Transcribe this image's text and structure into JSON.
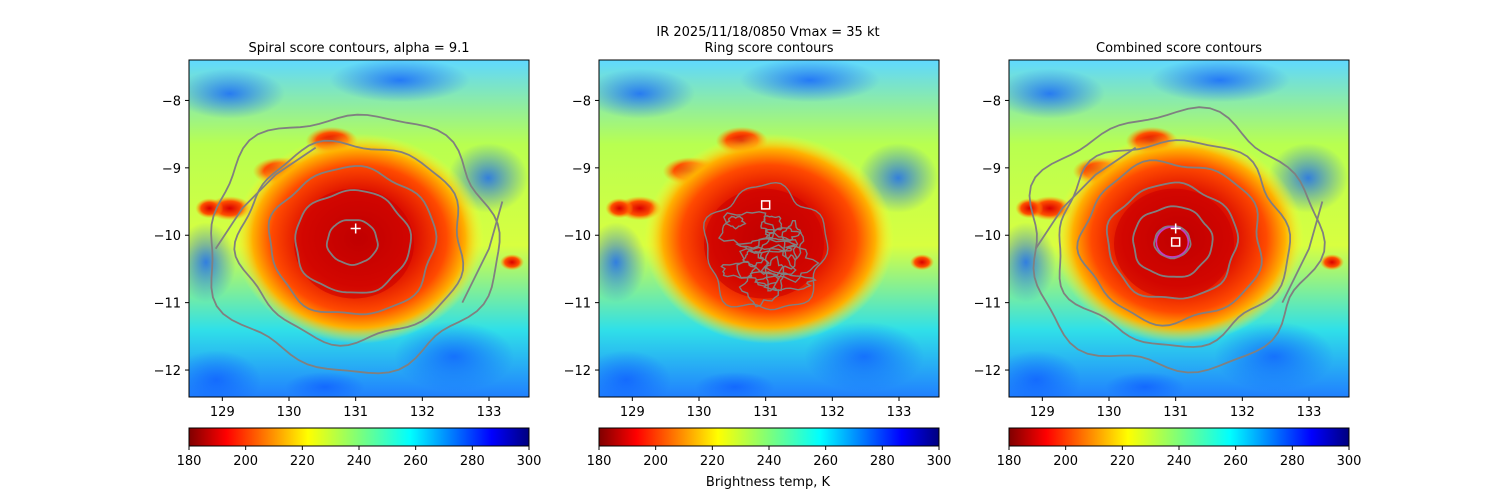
{
  "figure": {
    "suptitle_line1": "IR  2025/11/18/0850    Vmax = 35 kt",
    "colorbar_label": "Brightness temp, K"
  },
  "palette": {
    "contour_gray": "#808080",
    "white_marker": "#ffffff",
    "magenta_contour": "#c040c0",
    "storm_core": "#cc0000"
  },
  "chart_data": [
    {
      "type": "heatmap",
      "title": "Spiral score contours, alpha =  9.1",
      "xlim": [
        128.5,
        133.6
      ],
      "ylim": [
        -12.4,
        -7.4
      ],
      "xticks": [
        129,
        130,
        131,
        132,
        133
      ],
      "yticks": [
        -8,
        -9,
        -10,
        -11,
        -12
      ],
      "colormap": "jet",
      "colorbar": {
        "min": 180,
        "max": 300,
        "ticks": [
          180,
          200,
          220,
          240,
          260,
          280,
          300
        ],
        "reversed": true
      },
      "contour_center": [
        130.95,
        -10.1
      ],
      "contour_levels_radii_deg": [
        0.35,
        0.8,
        1.15,
        1.55,
        2.0
      ],
      "markers": [
        {
          "shape": "plus",
          "lon": 131.0,
          "lat": -9.9
        }
      ]
    },
    {
      "type": "heatmap",
      "title": "Ring score contours",
      "xlim": [
        128.5,
        133.6
      ],
      "ylim": [
        -12.4,
        -7.4
      ],
      "xticks": [
        129,
        130,
        131,
        132,
        133
      ],
      "yticks": [
        -8,
        -9,
        -10,
        -11,
        -12
      ],
      "colormap": "jet",
      "colorbar": {
        "min": 180,
        "max": 300,
        "ticks": [
          180,
          200,
          220,
          240,
          260,
          280,
          300
        ],
        "reversed": false
      },
      "contour_center": [
        131.0,
        -10.2
      ],
      "markers": [
        {
          "shape": "square",
          "lon": 131.0,
          "lat": -9.55
        }
      ]
    },
    {
      "type": "heatmap",
      "title": "Combined score contours",
      "xlim": [
        128.5,
        133.6
      ],
      "ylim": [
        -12.4,
        -7.4
      ],
      "xticks": [
        129,
        130,
        131,
        132,
        133
      ],
      "yticks": [
        -8,
        -9,
        -10,
        -11,
        -12
      ],
      "colormap": "jet",
      "colorbar": {
        "min": 180,
        "max": 300,
        "ticks": [
          180,
          200,
          220,
          240,
          260,
          280,
          300
        ],
        "reversed": true
      },
      "contour_center": [
        130.95,
        -10.1
      ],
      "contour_levels_radii_deg": [
        0.25,
        0.55,
        0.9,
        1.25,
        1.6,
        2.0
      ],
      "markers": [
        {
          "shape": "plus",
          "lon": 131.0,
          "lat": -9.9
        },
        {
          "shape": "square",
          "lon": 131.0,
          "lat": -10.1
        }
      ]
    }
  ]
}
